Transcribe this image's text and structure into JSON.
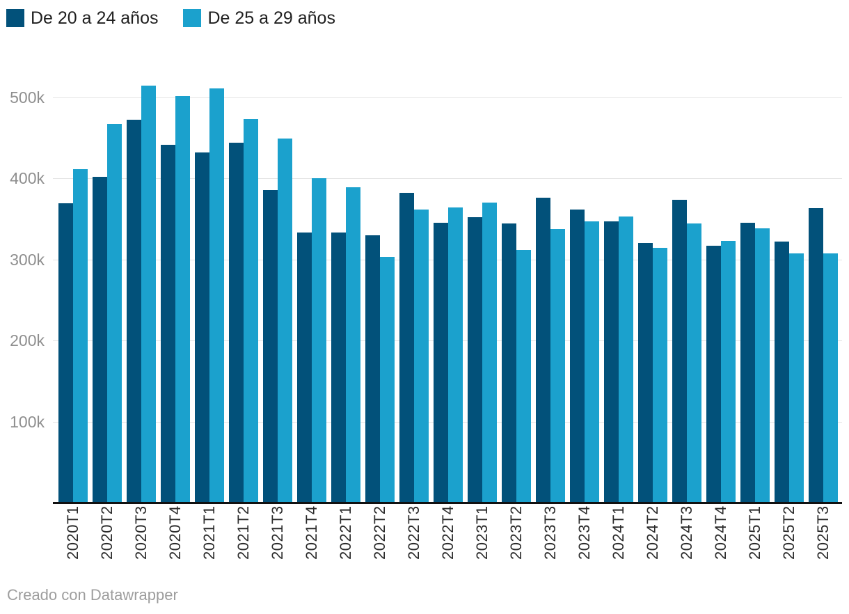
{
  "legend": {
    "items": [
      {
        "label": "De 20 a 24 años",
        "color": "#02517a",
        "swatch_icon": "square-swatch-icon"
      },
      {
        "label": "De 25 a 29 años",
        "color": "#1ba1cd",
        "swatch_icon": "square-swatch-icon"
      }
    ]
  },
  "footer": {
    "credit": "Creado con Datawrapper"
  },
  "chart_data": {
    "type": "bar",
    "title": "",
    "xlabel": "",
    "ylabel": "",
    "grid": true,
    "legend_position": "top-left",
    "ylim": [
      0,
      540000
    ],
    "yticks": [
      {
        "value": 100000,
        "label": "100k"
      },
      {
        "value": 200000,
        "label": "200k"
      },
      {
        "value": 300000,
        "label": "300k"
      },
      {
        "value": 400000,
        "label": "400k"
      },
      {
        "value": 500000,
        "label": "500k"
      }
    ],
    "categories": [
      "2020T1",
      "2020T2",
      "2020T3",
      "2020T4",
      "2021T1",
      "2021T2",
      "2021T3",
      "2021T4",
      "2022T1",
      "2022T2",
      "2022T3",
      "2022T4",
      "2023T1",
      "2023T2",
      "2023T3",
      "2023T4",
      "2024T1",
      "2024T2",
      "2024T3",
      "2024T4",
      "2025T1",
      "2025T2",
      "2025T3"
    ],
    "series": [
      {
        "name": "De 20 a 24 años",
        "color": "#02517a",
        "values": [
          369000,
          402000,
          472000,
          441000,
          432000,
          444000,
          385000,
          333000,
          333000,
          330000,
          382000,
          345000,
          352000,
          344000,
          376000,
          361000,
          347000,
          320000,
          373000,
          317000,
          345000,
          322000,
          363000
        ]
      },
      {
        "name": "De 25 a 29 años",
        "color": "#1ba1cd",
        "values": [
          411000,
          467000,
          514000,
          501000,
          511000,
          473000,
          449000,
          400000,
          389000,
          303000,
          361000,
          364000,
          370000,
          312000,
          337000,
          347000,
          353000,
          314000,
          344000,
          323000,
          338000,
          307000,
          307000
        ]
      }
    ]
  }
}
